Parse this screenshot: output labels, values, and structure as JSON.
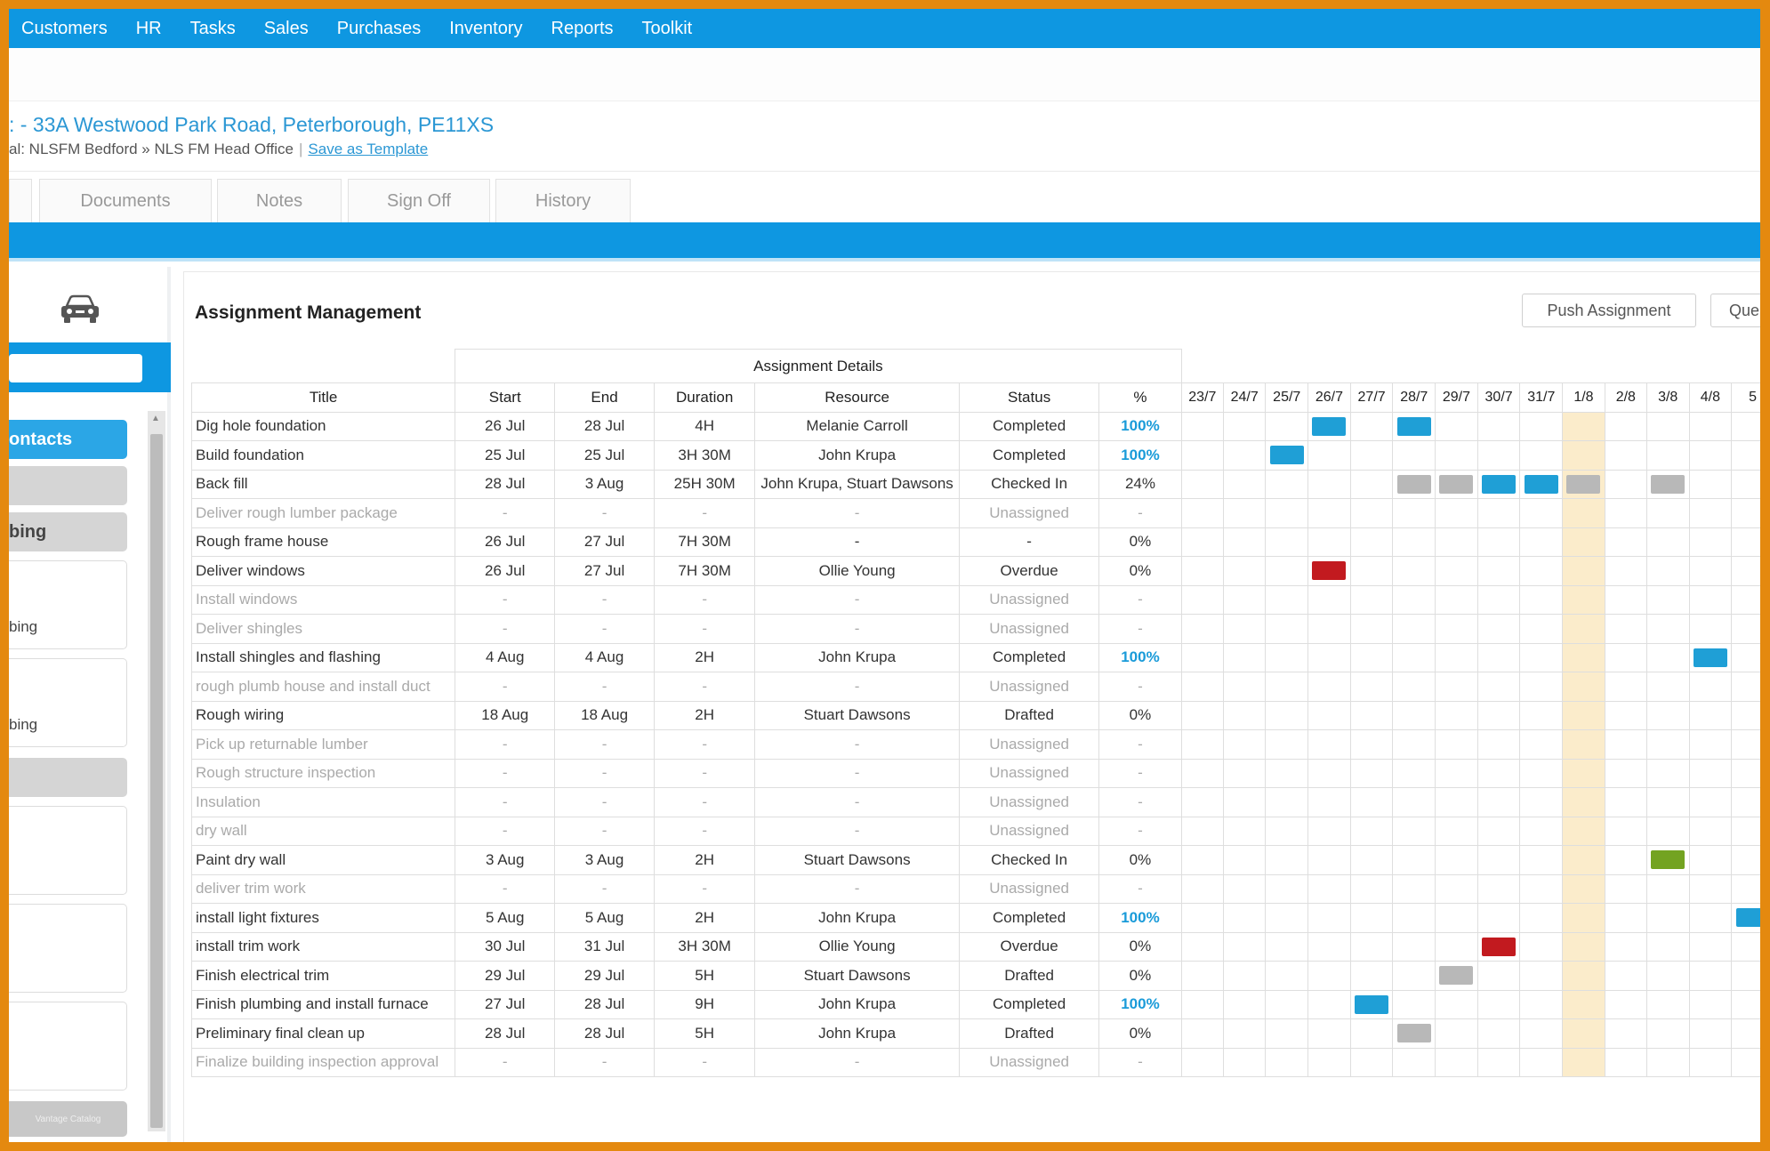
{
  "nav": [
    "Customers",
    "HR",
    "Tasks",
    "Sales",
    "Purchases",
    "Inventory",
    "Reports",
    "Toolkit"
  ],
  "job": {
    "title": ": - 33A Westwood Park Road, Peterborough, PE11XS",
    "breadcrumb": "al: NLSFM Bedford » NLS FM Head Office",
    "save_template": "Save as Template"
  },
  "tabs": [
    "Documents",
    "Notes",
    "Sign Off",
    "History"
  ],
  "sidebar": {
    "car_icon": "car-icon",
    "items": [
      "ontacts",
      "bing"
    ],
    "cards": [
      "bing",
      "bing"
    ],
    "footer_text": "Vantage Catalog"
  },
  "panel": {
    "title": "Assignment Management",
    "push_button": "Push Assignment",
    "que_button": "Que"
  },
  "table": {
    "group_header": "Assignment Details",
    "headers": [
      "Title",
      "Start",
      "End",
      "Duration",
      "Resource",
      "Status",
      "%"
    ],
    "days": [
      "23/7",
      "24/7",
      "25/7",
      "26/7",
      "27/7",
      "28/7",
      "29/7",
      "30/7",
      "31/7",
      "1/8",
      "2/8",
      "3/8",
      "4/8",
      "5"
    ],
    "today_index": 9,
    "rows": [
      {
        "title": "Dig hole foundation",
        "start": "26 Jul",
        "end": "28 Jul",
        "duration": "4H",
        "resource": "Melanie Carroll",
        "status": "Completed",
        "pct": "100%",
        "unassigned": false,
        "bars": [
          {
            "day": 3,
            "color": "blue"
          },
          {
            "day": 5,
            "color": "blue"
          }
        ]
      },
      {
        "title": "Build foundation",
        "start": "25 Jul",
        "end": "25 Jul",
        "duration": "3H 30M",
        "resource": "John Krupa",
        "status": "Completed",
        "pct": "100%",
        "unassigned": false,
        "bars": [
          {
            "day": 2,
            "color": "blue"
          }
        ]
      },
      {
        "title": "Back fill",
        "start": "28 Jul",
        "end": "3 Aug",
        "duration": "25H 30M",
        "resource": "John Krupa, Stuart Dawsons",
        "status": "Checked In",
        "pct": "24%",
        "unassigned": false,
        "bars": [
          {
            "day": 5,
            "color": "gray"
          },
          {
            "day": 6,
            "color": "gray"
          },
          {
            "day": 7,
            "color": "blue"
          },
          {
            "day": 8,
            "color": "blue"
          },
          {
            "day": 9,
            "color": "gray"
          },
          {
            "day": 11,
            "color": "gray"
          }
        ]
      },
      {
        "title": "Deliver rough lumber package",
        "start": "-",
        "end": "-",
        "duration": "-",
        "resource": "-",
        "status": "Unassigned",
        "pct": "-",
        "unassigned": true,
        "bars": []
      },
      {
        "title": "Rough frame house",
        "start": "26 Jul",
        "end": "27 Jul",
        "duration": "7H 30M",
        "resource": "-",
        "status": "-",
        "pct": "0%",
        "unassigned": false,
        "bars": []
      },
      {
        "title": "Deliver windows",
        "start": "26 Jul",
        "end": "27 Jul",
        "duration": "7H 30M",
        "resource": "Ollie Young",
        "status": "Overdue",
        "pct": "0%",
        "unassigned": false,
        "bars": [
          {
            "day": 3,
            "color": "red"
          }
        ]
      },
      {
        "title": "Install windows",
        "start": "-",
        "end": "-",
        "duration": "-",
        "resource": "-",
        "status": "Unassigned",
        "pct": "-",
        "unassigned": true,
        "bars": []
      },
      {
        "title": "Deliver shingles",
        "start": "-",
        "end": "-",
        "duration": "-",
        "resource": "-",
        "status": "Unassigned",
        "pct": "-",
        "unassigned": true,
        "bars": []
      },
      {
        "title": "Install shingles and flashing",
        "start": "4 Aug",
        "end": "4 Aug",
        "duration": "2H",
        "resource": "John Krupa",
        "status": "Completed",
        "pct": "100%",
        "unassigned": false,
        "bars": [
          {
            "day": 12,
            "color": "blue"
          }
        ]
      },
      {
        "title": "rough plumb house and install duct",
        "start": "-",
        "end": "-",
        "duration": "-",
        "resource": "-",
        "status": "Unassigned",
        "pct": "-",
        "unassigned": true,
        "bars": []
      },
      {
        "title": "Rough wiring",
        "start": "18 Aug",
        "end": "18 Aug",
        "duration": "2H",
        "resource": "Stuart Dawsons",
        "status": "Drafted",
        "pct": "0%",
        "unassigned": false,
        "bars": []
      },
      {
        "title": "Pick up returnable lumber",
        "start": "-",
        "end": "-",
        "duration": "-",
        "resource": "-",
        "status": "Unassigned",
        "pct": "-",
        "unassigned": true,
        "bars": []
      },
      {
        "title": "Rough structure inspection",
        "start": "-",
        "end": "-",
        "duration": "-",
        "resource": "-",
        "status": "Unassigned",
        "pct": "-",
        "unassigned": true,
        "bars": []
      },
      {
        "title": "Insulation",
        "start": "-",
        "end": "-",
        "duration": "-",
        "resource": "-",
        "status": "Unassigned",
        "pct": "-",
        "unassigned": true,
        "bars": []
      },
      {
        "title": "dry wall",
        "start": "-",
        "end": "-",
        "duration": "-",
        "resource": "-",
        "status": "Unassigned",
        "pct": "-",
        "unassigned": true,
        "bars": []
      },
      {
        "title": "Paint dry wall",
        "start": "3 Aug",
        "end": "3 Aug",
        "duration": "2H",
        "resource": "Stuart Dawsons",
        "status": "Checked In",
        "pct": "0%",
        "unassigned": false,
        "bars": [
          {
            "day": 11,
            "color": "green"
          }
        ]
      },
      {
        "title": "deliver trim work",
        "start": "-",
        "end": "-",
        "duration": "-",
        "resource": "-",
        "status": "Unassigned",
        "pct": "-",
        "unassigned": true,
        "bars": []
      },
      {
        "title": "install light fixtures",
        "start": "5 Aug",
        "end": "5 Aug",
        "duration": "2H",
        "resource": "John Krupa",
        "status": "Completed",
        "pct": "100%",
        "unassigned": false,
        "bars": [
          {
            "day": 13,
            "color": "blue"
          }
        ]
      },
      {
        "title": "install trim work",
        "start": "30 Jul",
        "end": "31 Jul",
        "duration": "3H 30M",
        "resource": "Ollie Young",
        "status": "Overdue",
        "pct": "0%",
        "unassigned": false,
        "bars": [
          {
            "day": 7,
            "color": "red"
          }
        ]
      },
      {
        "title": "Finish electrical trim",
        "start": "29 Jul",
        "end": "29 Jul",
        "duration": "5H",
        "resource": "Stuart Dawsons",
        "status": "Drafted",
        "pct": "0%",
        "unassigned": false,
        "bars": [
          {
            "day": 6,
            "color": "gray"
          }
        ]
      },
      {
        "title": "Finish plumbing and install furnace",
        "start": "27 Jul",
        "end": "28 Jul",
        "duration": "9H",
        "resource": "John Krupa",
        "status": "Completed",
        "pct": "100%",
        "unassigned": false,
        "bars": [
          {
            "day": 4,
            "color": "blue"
          }
        ]
      },
      {
        "title": "Preliminary final clean up",
        "start": "28 Jul",
        "end": "28 Jul",
        "duration": "5H",
        "resource": "John Krupa",
        "status": "Drafted",
        "pct": "0%",
        "unassigned": false,
        "bars": [
          {
            "day": 5,
            "color": "gray"
          }
        ]
      },
      {
        "title": "Finalize building inspection approval",
        "start": "-",
        "end": "-",
        "duration": "-",
        "resource": "-",
        "status": "Unassigned",
        "pct": "-",
        "unassigned": true,
        "bars": []
      }
    ]
  },
  "colors": {
    "brand_blue": "#0e97e1",
    "bar_blue": "#1f9fd6",
    "bar_gray": "#b8b8b8",
    "bar_red": "#c21a1f",
    "bar_green": "#73a321",
    "today_highlight": "#fbeccb",
    "frame_orange": "#e4890f"
  }
}
